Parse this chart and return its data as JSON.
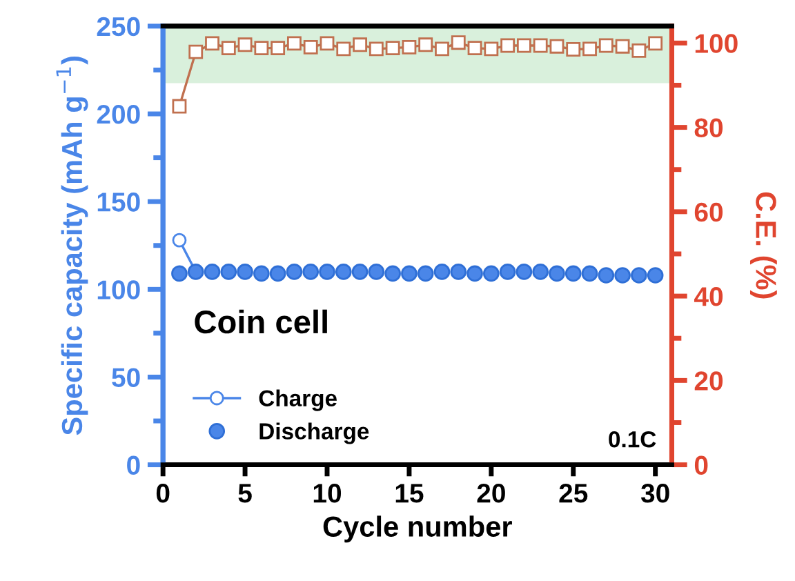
{
  "chart_data": {
    "type": "line",
    "xlabel": "Cycle number",
    "ylabel": "Specific capacity (mAh g$^{−1}$)",
    "y2label": "C.E. (%)",
    "x": [
      1,
      2,
      3,
      4,
      5,
      6,
      7,
      8,
      9,
      10,
      11,
      12,
      13,
      14,
      15,
      16,
      17,
      18,
      19,
      20,
      21,
      22,
      23,
      24,
      25,
      26,
      27,
      28,
      29,
      30
    ],
    "series": [
      {
        "name": "Charge",
        "color": "#4a86e8",
        "marker": "circle",
        "values": [
          128,
          110,
          null,
          null,
          null,
          null,
          null,
          null,
          null,
          null,
          null,
          null,
          null,
          null,
          null,
          null,
          null,
          null,
          null,
          null,
          null,
          null,
          null,
          null,
          null,
          null,
          null,
          null,
          null,
          null
        ]
      },
      {
        "name": "Discharge",
        "color": "#4a86e8",
        "marker": "circle",
        "type": "scatter",
        "values": [
          109,
          110,
          110,
          110,
          110,
          109,
          109,
          110,
          110,
          110,
          110,
          110,
          110,
          109,
          109,
          109,
          110,
          110,
          109,
          109,
          110,
          110,
          110,
          109,
          109,
          109,
          108,
          108,
          108,
          108
        ]
      },
      {
        "color": "#c0704f",
        "marker": "square",
        "axis": "y2",
        "values": [
          85,
          97.9,
          99.9,
          98.8,
          99.6,
          98.8,
          98.8,
          99.9,
          99.0,
          99.9,
          98.6,
          99.6,
          98.6,
          98.8,
          99.0,
          99.6,
          98.6,
          100.1,
          98.8,
          98.6,
          99.4,
          99.4,
          99.4,
          99.2,
          98.5,
          98.6,
          99.4,
          99.2,
          98.2,
          99.9
        ]
      }
    ],
    "xlim": [
      0,
      31
    ],
    "xticks": [
      0,
      5,
      10,
      15,
      20,
      25,
      30
    ],
    "ylim": [
      0,
      250
    ],
    "yticks": [
      0,
      50,
      100,
      150,
      200,
      250
    ],
    "y2lim": [
      0,
      104
    ],
    "y2ticks": [
      0,
      20,
      40,
      60,
      80,
      100
    ],
    "bands": [
      {
        "axis": "y2",
        "from": 90.5,
        "to": 104,
        "color": "#d9f0dc"
      }
    ],
    "annotations": [
      "Coin cell",
      "0.1C"
    ],
    "legend": "bottom left"
  }
}
